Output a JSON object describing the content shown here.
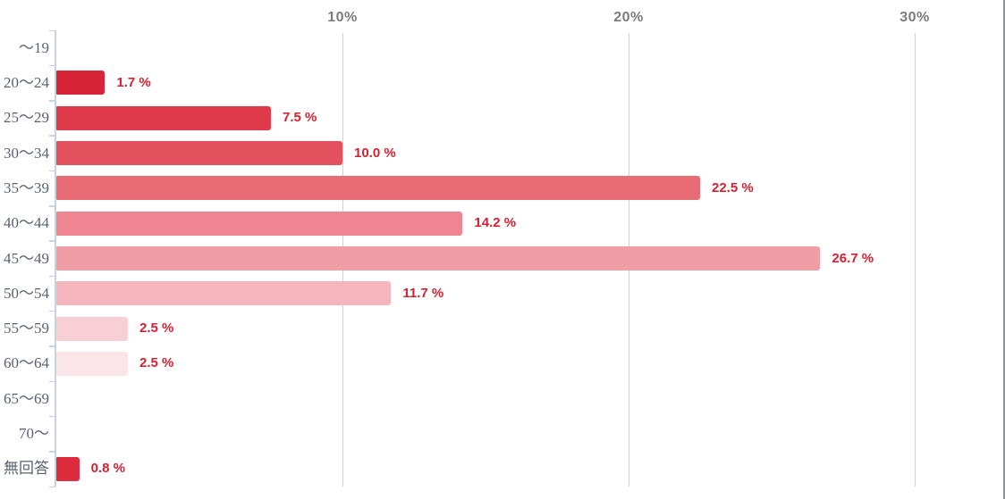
{
  "chart_data": {
    "type": "bar",
    "orientation": "horizontal",
    "title": "",
    "xlabel": "",
    "ylabel": "",
    "categories": [
      "〜19",
      "20〜24",
      "25〜29",
      "30〜34",
      "35〜39",
      "40〜44",
      "45〜49",
      "50〜54",
      "55〜59",
      "60〜64",
      "65〜69",
      "70〜",
      "無回答"
    ],
    "values": [
      0,
      1.7,
      7.5,
      10.0,
      22.5,
      14.2,
      26.7,
      11.7,
      2.5,
      2.5,
      0,
      0,
      0.8
    ],
    "value_labels": [
      "",
      "1.7 %",
      "7.5 %",
      "10.0 %",
      "22.5 %",
      "14.2 %",
      "26.7 %",
      "11.7 %",
      "2.5 %",
      "2.5 %",
      "",
      "",
      "0.8 %"
    ],
    "bar_colors": [
      "",
      "#d82438",
      "#de3a4b",
      "#e4515e",
      "#e96b76",
      "#ee8590",
      "#f19da5",
      "#f4b6bc",
      "#f8cfd4",
      "#fbe5e8",
      "",
      "",
      "#dc2c3e"
    ],
    "x_ticks": [
      {
        "label": "10%",
        "value": 10
      },
      {
        "label": "20%",
        "value": 20
      },
      {
        "label": "30%",
        "value": 30
      }
    ],
    "xlim": [
      0,
      33.1
    ],
    "grid": true,
    "legend": null,
    "colors": {
      "value_label": "#d7202f",
      "category_label": "#5a6270",
      "x_tick_label": "#7c7c7c",
      "gridline": "#d0d0d0",
      "axis_line": "#c6d4e1",
      "right_border": "#8e9297",
      "background": "#ffffff"
    }
  }
}
